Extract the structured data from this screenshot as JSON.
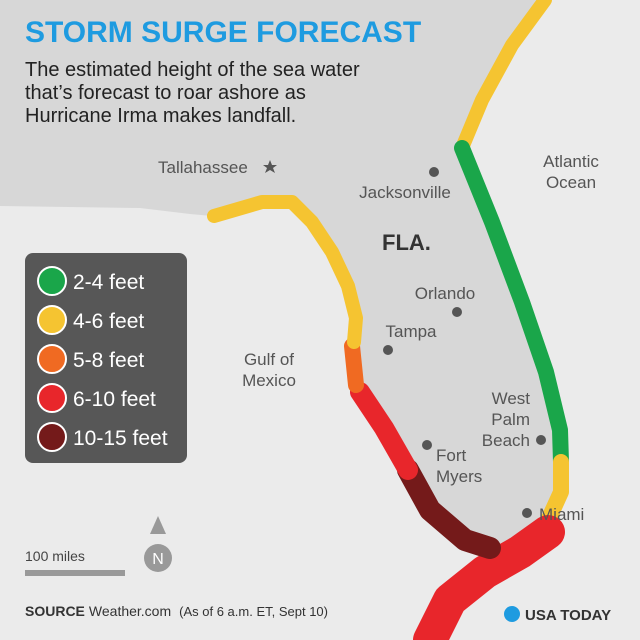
{
  "header": {
    "title": "STORM SURGE FORECAST",
    "subtitle": [
      "The estimated height of the sea water",
      "that’s forecast to roar ashore as",
      "Hurricane Irma makes landfall."
    ]
  },
  "legend": {
    "items": [
      {
        "label": "2-4 feet",
        "color": "#1aa64a"
      },
      {
        "label": "4-6 feet",
        "color": "#f5c431"
      },
      {
        "label": "5-8 feet",
        "color": "#f06a22"
      },
      {
        "label": "6-10 feet",
        "color": "#e8262b"
      },
      {
        "label": "10-15 feet",
        "color": "#741a1a"
      }
    ]
  },
  "places": {
    "tallahassee": "Tallahassee",
    "jacksonville": "Jacksonville",
    "state": "FLA.",
    "orlando": "Orlando",
    "tampa": "Tampa",
    "fort_myers": [
      "Fort",
      "Myers"
    ],
    "west_palm_beach": [
      "West",
      "Palm",
      "Beach"
    ],
    "miami": "Miami",
    "gulf": [
      "Gulf of",
      "Mexico"
    ],
    "atlantic": [
      "Atlantic",
      "Ocean"
    ]
  },
  "scale": {
    "label": "100 miles",
    "north": "N"
  },
  "footer": {
    "source_label": "SOURCE",
    "source": "Weather.com",
    "note": "(As of 6 a.m. ET, Sept 10)",
    "brand": "USA TODAY"
  }
}
